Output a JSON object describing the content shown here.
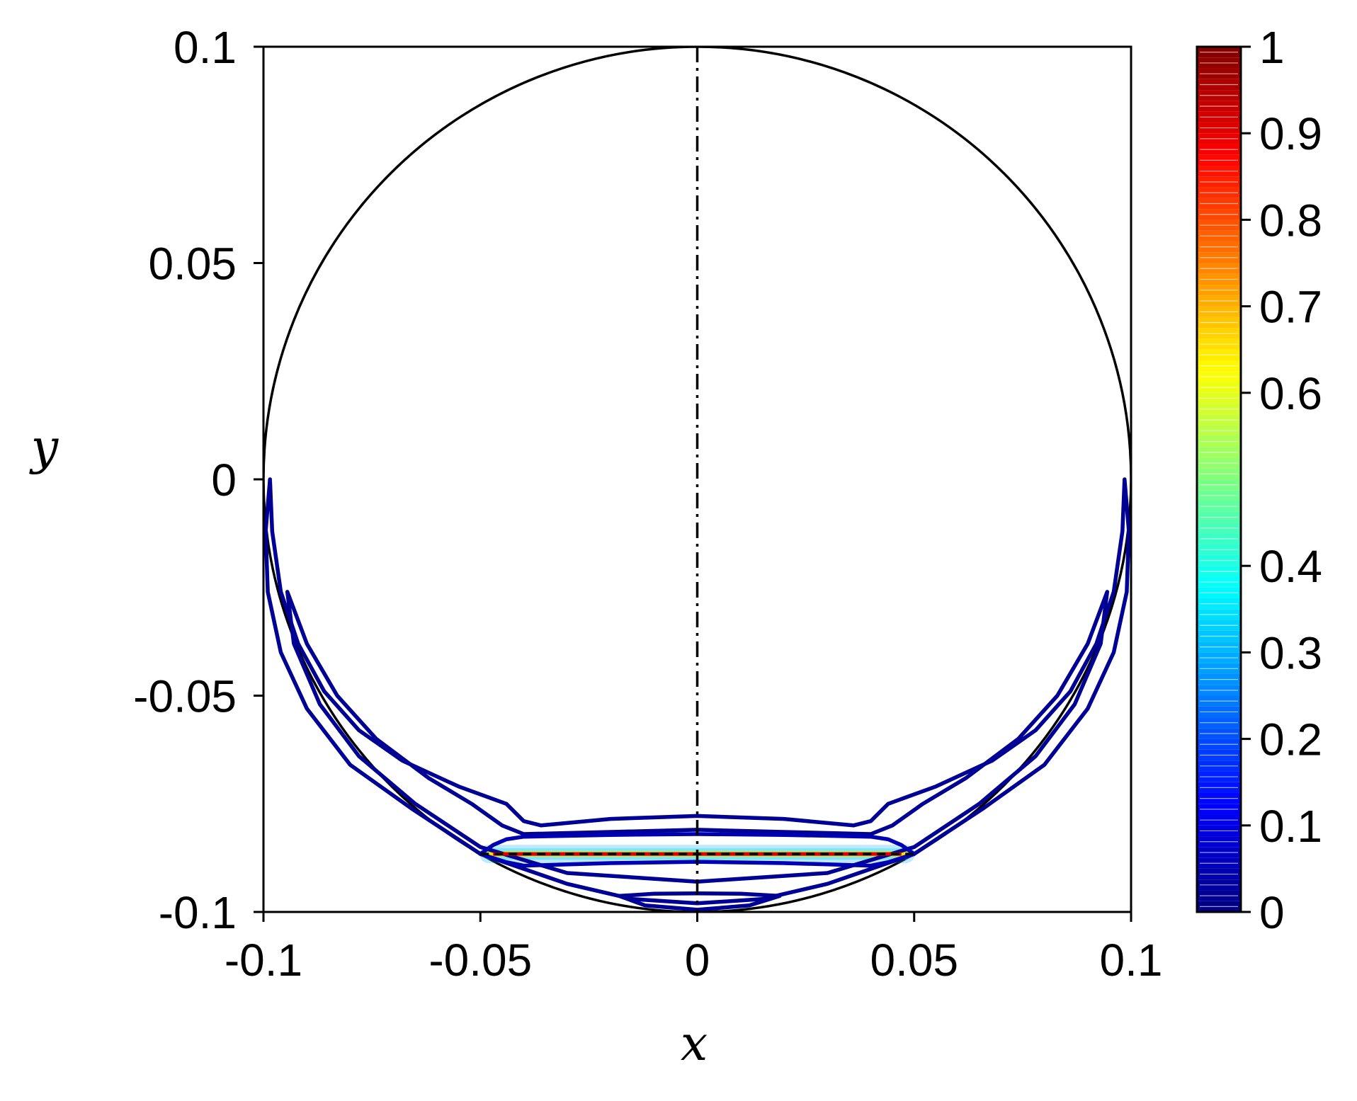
{
  "chart_data": {
    "type": "contour",
    "xlabel": "x",
    "ylabel": "y",
    "xlim": [
      -0.1,
      0.1
    ],
    "ylim": [
      -0.1,
      0.1
    ],
    "xticks": [
      {
        "value": -0.1,
        "label": "-0.1"
      },
      {
        "value": -0.05,
        "label": "-0.05"
      },
      {
        "value": 0,
        "label": "0"
      },
      {
        "value": 0.05,
        "label": "0.05"
      },
      {
        "value": 0.1,
        "label": "0.1"
      }
    ],
    "yticks": [
      {
        "value": 0.1,
        "label": "0.1"
      },
      {
        "value": 0.05,
        "label": "0.05"
      },
      {
        "value": 0,
        "label": "0"
      },
      {
        "value": -0.05,
        "label": "-0.05"
      },
      {
        "value": -0.1,
        "label": "-0.1"
      }
    ],
    "colorbar": {
      "colormap": "jet",
      "range": [
        0,
        1
      ],
      "ticks": [
        {
          "value": 0,
          "label": "0"
        },
        {
          "value": 0.1,
          "label": "0.1"
        },
        {
          "value": 0.2,
          "label": "0.2"
        },
        {
          "value": 0.3,
          "label": "0.3"
        },
        {
          "value": 0.4,
          "label": "0.4"
        },
        {
          "value": 0.6,
          "label": "0.6"
        },
        {
          "value": 0.7,
          "label": "0.7"
        },
        {
          "value": 0.8,
          "label": "0.8"
        },
        {
          "value": 0.9,
          "label": "0.9"
        },
        {
          "value": 1,
          "label": "1"
        }
      ]
    },
    "boundary_circle": {
      "center": [
        0,
        0
      ],
      "radius": 0.1
    },
    "symmetry_axis_x": 0,
    "segment": {
      "x": [
        -0.05,
        0.05
      ],
      "y": -0.0866
    },
    "contours": [
      {
        "level": 0.02,
        "closed": true,
        "points": [
          [
            -0.0985,
            0.0
          ],
          [
            -0.098,
            -0.012
          ],
          [
            -0.096,
            -0.026
          ],
          [
            -0.092,
            -0.038
          ],
          [
            -0.086,
            -0.049
          ],
          [
            -0.078,
            -0.058
          ],
          [
            -0.068,
            -0.065
          ],
          [
            -0.055,
            -0.071
          ],
          [
            -0.044,
            -0.075
          ],
          [
            -0.04,
            -0.079
          ],
          [
            -0.036,
            -0.08
          ],
          [
            -0.02,
            -0.0785
          ],
          [
            0.0,
            -0.0778
          ],
          [
            0.02,
            -0.0785
          ],
          [
            0.036,
            -0.08
          ],
          [
            0.04,
            -0.079
          ],
          [
            0.044,
            -0.075
          ],
          [
            0.055,
            -0.071
          ],
          [
            0.068,
            -0.065
          ],
          [
            0.078,
            -0.058
          ],
          [
            0.086,
            -0.049
          ],
          [
            0.092,
            -0.038
          ],
          [
            0.096,
            -0.026
          ],
          [
            0.098,
            -0.012
          ],
          [
            0.0985,
            0.0
          ],
          [
            0.0995,
            -0.012
          ],
          [
            0.099,
            -0.026
          ],
          [
            0.096,
            -0.04
          ],
          [
            0.09,
            -0.053
          ],
          [
            0.08,
            -0.066
          ],
          [
            0.066,
            -0.076
          ],
          [
            0.05,
            -0.0866
          ],
          [
            0.03,
            -0.0935
          ],
          [
            0.015,
            -0.097
          ],
          [
            0.0,
            -0.098
          ],
          [
            -0.015,
            -0.097
          ],
          [
            -0.03,
            -0.0935
          ],
          [
            -0.05,
            -0.0866
          ],
          [
            -0.066,
            -0.076
          ],
          [
            -0.08,
            -0.066
          ],
          [
            -0.09,
            -0.053
          ],
          [
            -0.096,
            -0.04
          ],
          [
            -0.099,
            -0.026
          ],
          [
            -0.0995,
            -0.012
          ]
        ]
      },
      {
        "level": 0.02,
        "closed": true,
        "points": [
          [
            -0.0945,
            -0.026
          ],
          [
            -0.09,
            -0.038
          ],
          [
            -0.083,
            -0.05
          ],
          [
            -0.074,
            -0.06
          ],
          [
            -0.062,
            -0.069
          ],
          [
            -0.052,
            -0.075
          ],
          [
            -0.045,
            -0.08
          ],
          [
            -0.04,
            -0.082
          ],
          [
            -0.02,
            -0.0815
          ],
          [
            0.0,
            -0.081
          ],
          [
            0.02,
            -0.0815
          ],
          [
            0.04,
            -0.082
          ],
          [
            0.045,
            -0.08
          ],
          [
            0.052,
            -0.075
          ],
          [
            0.062,
            -0.069
          ],
          [
            0.074,
            -0.06
          ],
          [
            0.083,
            -0.05
          ],
          [
            0.09,
            -0.038
          ],
          [
            0.0945,
            -0.026
          ],
          [
            0.093,
            -0.038
          ],
          [
            0.087,
            -0.052
          ],
          [
            0.078,
            -0.064
          ],
          [
            0.065,
            -0.075
          ],
          [
            0.05,
            -0.085
          ],
          [
            0.03,
            -0.091
          ],
          [
            0.0,
            -0.093
          ],
          [
            -0.03,
            -0.091
          ],
          [
            -0.05,
            -0.085
          ],
          [
            -0.065,
            -0.075
          ],
          [
            -0.078,
            -0.064
          ],
          [
            -0.087,
            -0.052
          ],
          [
            -0.093,
            -0.038
          ]
        ]
      },
      {
        "level": 0.05,
        "closed": true,
        "points": [
          [
            -0.05,
            -0.0866
          ],
          [
            -0.047,
            -0.0845
          ],
          [
            -0.044,
            -0.0832
          ],
          [
            -0.04,
            -0.0826
          ],
          [
            -0.02,
            -0.0822
          ],
          [
            0.0,
            -0.082
          ],
          [
            0.02,
            -0.0822
          ],
          [
            0.04,
            -0.0826
          ],
          [
            0.044,
            -0.0832
          ],
          [
            0.047,
            -0.0845
          ],
          [
            0.05,
            -0.0866
          ],
          [
            0.044,
            -0.0885
          ],
          [
            0.04,
            -0.0893
          ],
          [
            0.02,
            -0.0887
          ],
          [
            0.0,
            -0.0884
          ],
          [
            -0.02,
            -0.0887
          ],
          [
            -0.04,
            -0.0893
          ],
          [
            -0.044,
            -0.0885
          ]
        ]
      },
      {
        "level": 0.02,
        "closed": true,
        "points": [
          [
            -0.018,
            -0.0963
          ],
          [
            -0.01,
            -0.0958
          ],
          [
            0.0,
            -0.0957
          ],
          [
            0.01,
            -0.0958
          ],
          [
            0.019,
            -0.0963
          ],
          [
            0.012,
            -0.0985
          ],
          [
            0.0,
            -0.0995
          ],
          [
            -0.012,
            -0.0985
          ]
        ]
      }
    ]
  }
}
